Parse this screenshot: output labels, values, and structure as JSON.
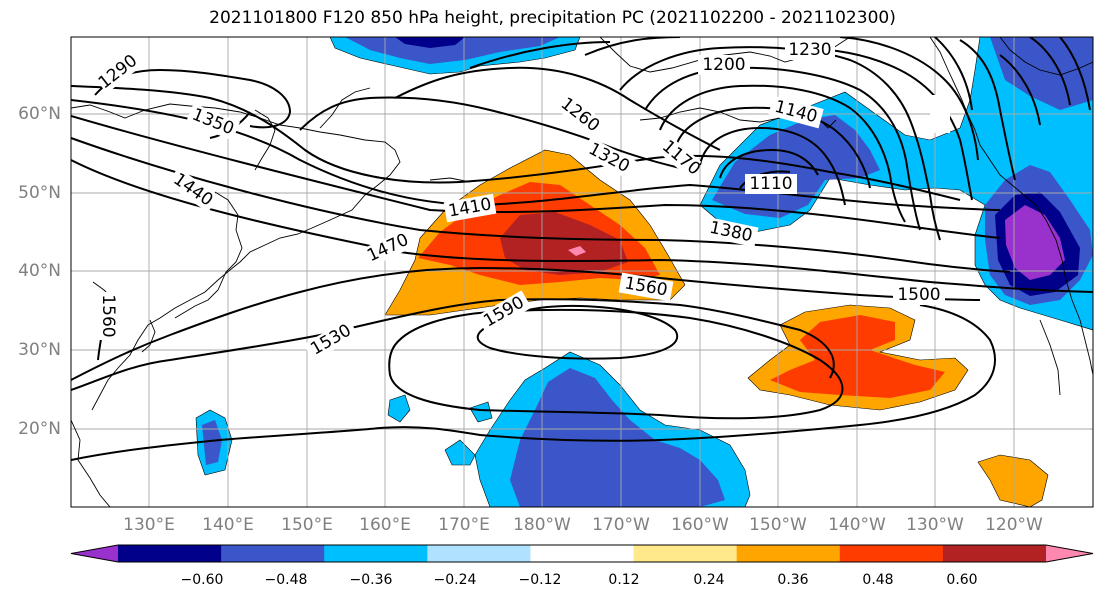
{
  "title": "2021101800 F120 850 hPa height, precipitation PC (2021102200 - 2021102300)",
  "lat_ticks": [
    "60°N",
    "50°N",
    "40°N",
    "30°N",
    "20°N"
  ],
  "lon_ticks": [
    "130°E",
    "140°E",
    "150°E",
    "160°E",
    "170°E",
    "180°W",
    "170°W",
    "160°W",
    "150°W",
    "140°W",
    "130°W",
    "120°W"
  ],
  "contour_labels": [
    "1290",
    "1230",
    "1200",
    "1350",
    "1260",
    "1140",
    "1320",
    "1170",
    "1440",
    "1110",
    "1410",
    "1380",
    "1470",
    "1560",
    "1500",
    "1590",
    "1530",
    "1560"
  ],
  "colorbar": {
    "colors": [
      "#9932cc",
      "#00008b",
      "#3a56c8",
      "#00bfff",
      "#b0e2ff",
      "#ffffff",
      "#ffe98a",
      "#ffa500",
      "#ff3c00",
      "#b22222",
      "#ff88b0"
    ],
    "tick_labels": [
      "−0.60",
      "−0.48",
      "−0.36",
      "−0.24",
      "−0.12",
      "0.12",
      "0.24",
      "0.36",
      "0.48",
      "0.60"
    ]
  },
  "colors": {
    "grid": "#a9a9a9",
    "tick_text": "#808080",
    "contour": "#000000",
    "coast": "#000000"
  }
}
